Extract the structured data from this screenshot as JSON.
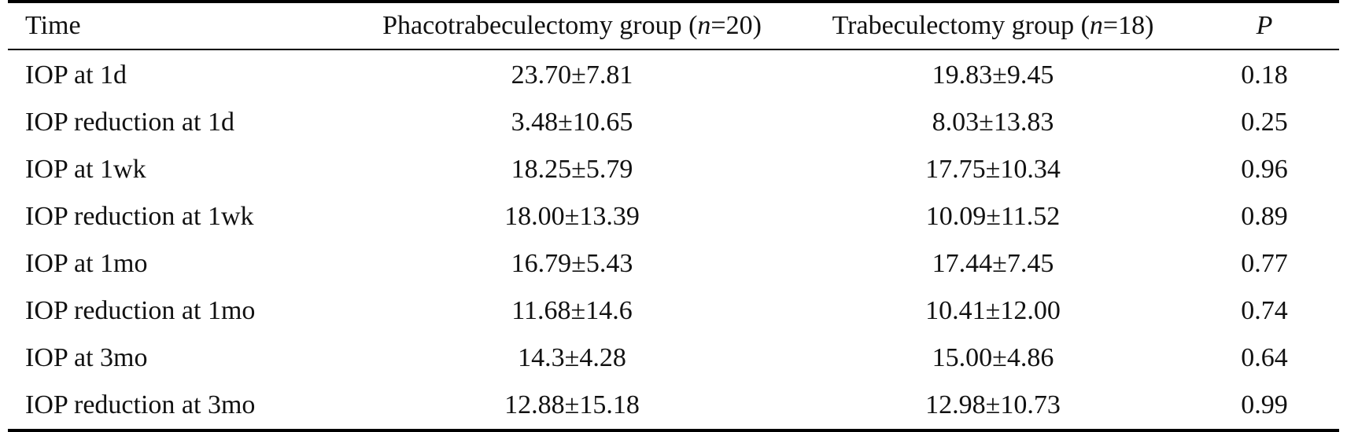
{
  "table": {
    "header": {
      "time": "Time",
      "phaco_prefix": "Phacotrabeculectomy group (",
      "phaco_n": "n",
      "phaco_suffix": "=20)",
      "trab_prefix": "Trabeculectomy group (",
      "trab_n": "n",
      "trab_suffix": "=18)",
      "p": "P"
    },
    "rows": [
      {
        "time": "IOP at 1d",
        "phaco": "23.70±7.81",
        "trab": "19.83±9.45",
        "p": "0.18"
      },
      {
        "time": "IOP reduction at 1d",
        "phaco": "3.48±10.65",
        "trab": "8.03±13.83",
        "p": "0.25"
      },
      {
        "time": "IOP at 1wk",
        "phaco": "18.25±5.79",
        "trab": "17.75±10.34",
        "p": "0.96"
      },
      {
        "time": "IOP reduction at 1wk",
        "phaco": "18.00±13.39",
        "trab": "10.09±11.52",
        "p": "0.89"
      },
      {
        "time": "IOP at 1mo",
        "phaco": "16.79±5.43",
        "trab": "17.44±7.45",
        "p": "0.77"
      },
      {
        "time": "IOP reduction at 1mo",
        "phaco": "11.68±14.6",
        "trab": "10.41±12.00",
        "p": "0.74"
      },
      {
        "time": "IOP at 3mo",
        "phaco": "14.3±4.28",
        "trab": "15.00±4.86",
        "p": "0.64"
      },
      {
        "time": "IOP reduction at 3mo",
        "phaco": "12.88±15.18",
        "trab": "12.98±10.73",
        "p": "0.99"
      }
    ]
  }
}
